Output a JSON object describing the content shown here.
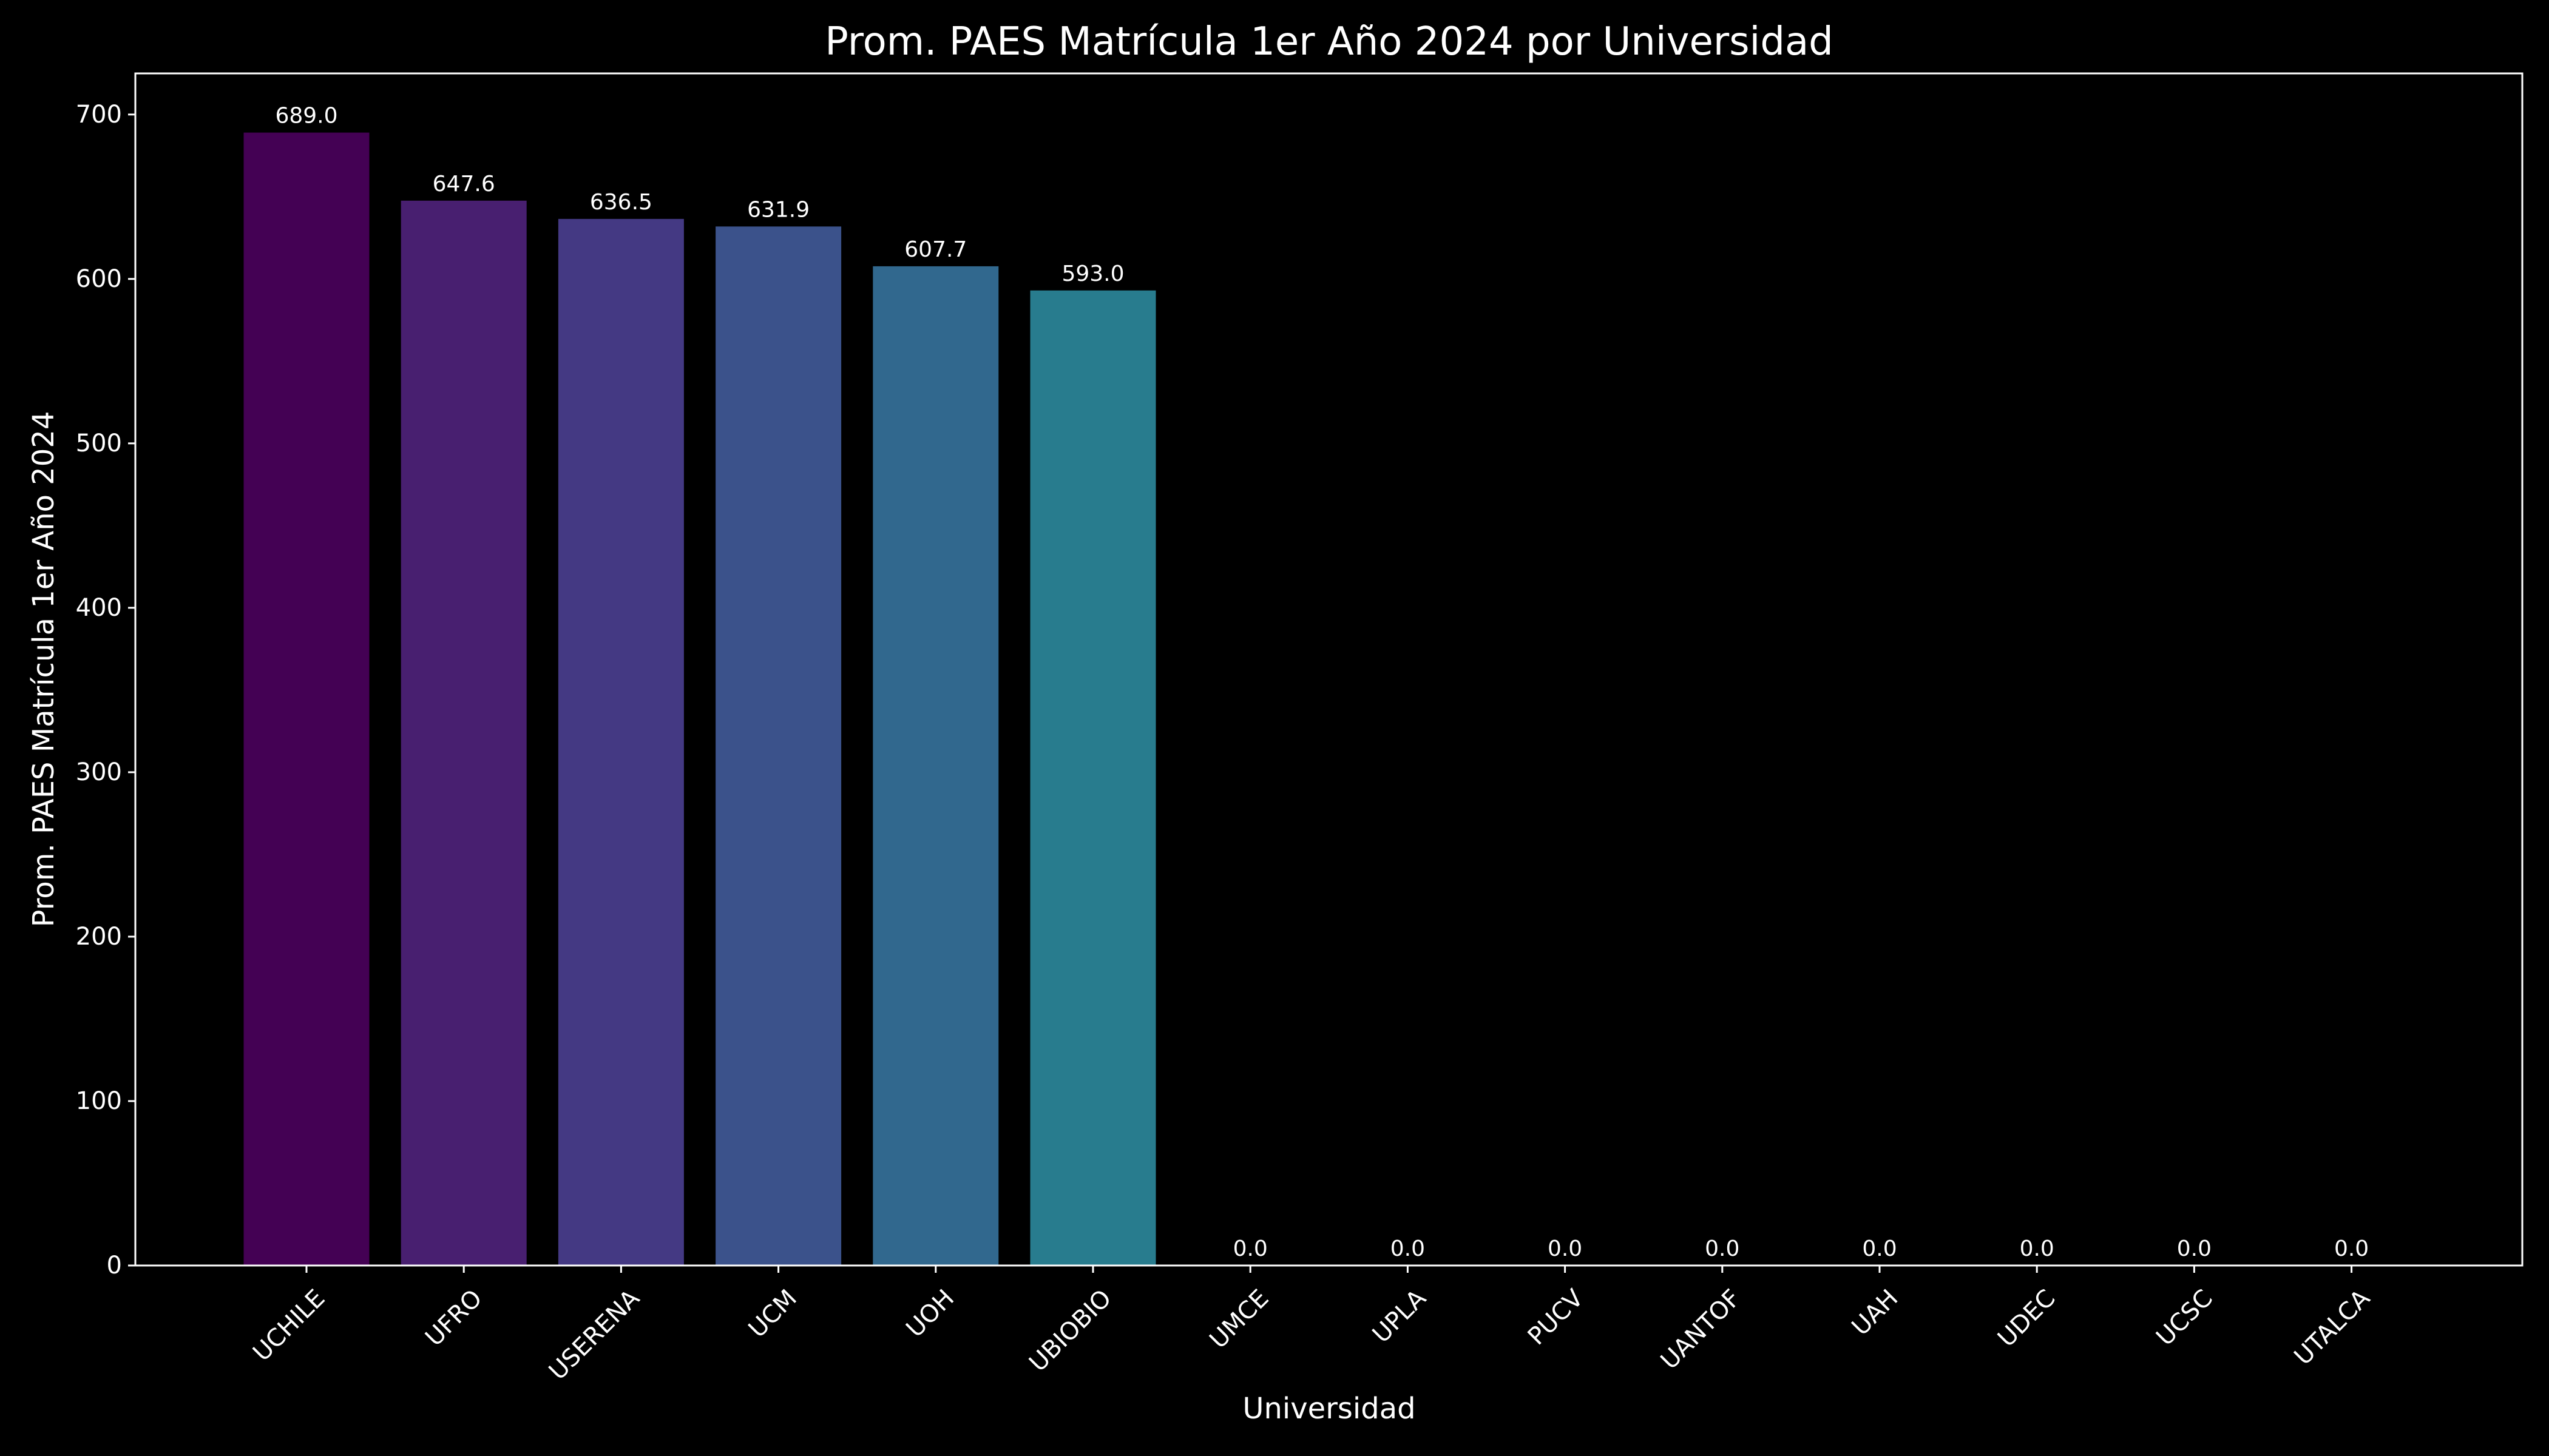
{
  "chart_data": {
    "type": "bar",
    "title": "Prom. PAES Matrícula 1er Año 2024 por Universidad",
    "xlabel": "Universidad",
    "ylabel": "Prom. PAES Matrícula 1er Año 2024",
    "ylim": [
      0,
      725
    ],
    "yticks": [
      0,
      100,
      200,
      300,
      400,
      500,
      600,
      700
    ],
    "grid": false,
    "legend": "none",
    "categories": [
      "UCHILE",
      "UFRO",
      "USERENA",
      "UCM",
      "UOH",
      "UBIOBIO",
      "UMCE",
      "UPLA",
      "PUCV",
      "UANTOF",
      "UAH",
      "UDEC",
      "UCSC",
      "UTALCA"
    ],
    "values": [
      689.0,
      647.6,
      636.5,
      631.9,
      607.7,
      593.0,
      0.0,
      0.0,
      0.0,
      0.0,
      0.0,
      0.0,
      0.0,
      0.0
    ],
    "data_labels": [
      "689.0",
      "647.6",
      "636.5",
      "631.9",
      "607.7",
      "593.0",
      "0.0",
      "0.0",
      "0.0",
      "0.0",
      "0.0",
      "0.0",
      "0.0",
      "0.0"
    ],
    "bar_colors": [
      "#440154",
      "#481f70",
      "#443983",
      "#3b528b",
      "#31688e",
      "#287c8e",
      "#21918c",
      "#20a486",
      "#35b779",
      "#5ec962",
      "#90d743",
      "#c8e020",
      "#e3e418",
      "#fde725"
    ],
    "colors": {
      "background": "#000000",
      "axis": "#ffffff",
      "text": "#ffffff"
    }
  }
}
